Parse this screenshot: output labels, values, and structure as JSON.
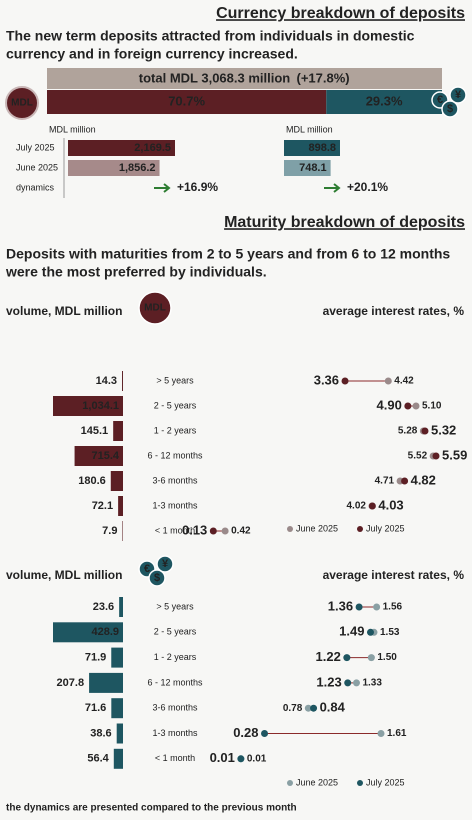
{
  "currency": {
    "title": "Currency breakdown of deposits",
    "headline": [
      "The new term deposits attracted from individuals in domestic",
      "currency and in foreign currency increased."
    ],
    "total": {
      "label": "total MDL 3,068.3 million",
      "change": "(+17.8%)"
    },
    "shares": [
      {
        "value": 70.7,
        "label": "70.7%",
        "color": "#5c1f24"
      },
      {
        "value": 29.3,
        "label": "29.3%",
        "color": "#1e5661"
      }
    ],
    "icon_mdl": "MDL",
    "icon_fx": [
      "€",
      "$",
      "¥"
    ],
    "row_labels": [
      "July 2025",
      "June 2025",
      "dynamics"
    ],
    "panels": [
      {
        "unit": "MDL million",
        "values": [
          2169.5,
          1856.2
        ],
        "value_labels": [
          "2,169.5",
          "1,856.2"
        ],
        "colors": [
          "#5c1f24",
          "#a68a8a"
        ],
        "dynamics": "+16.9%"
      },
      {
        "unit": "MDL million",
        "values": [
          898.8,
          748.1
        ],
        "value_labels": [
          "898.8",
          "748.1"
        ],
        "colors": [
          "#1e5661",
          "#7fa0a7"
        ],
        "dynamics": "+20.1%"
      }
    ]
  },
  "maturity": {
    "title": "Maturity breakdown of deposits",
    "headline": [
      "Deposits with maturities from 2 to 5 years and from 6 to 12 months",
      "were the most preferred by individuals."
    ],
    "charts": [
      {
        "volume_label": "volume, MDL million",
        "rates_label": "average interest rates, %",
        "icon": [
          "MDL"
        ],
        "categories": [
          "> 5 years",
          "2 - 5 years",
          "1 - 2 years",
          "6 - 12 months",
          "3-6 months",
          "1-3 months",
          "< 1 month"
        ],
        "volume": {
          "color": "#5c1f24",
          "values": [
            14.3,
            1034.1,
            145.1,
            715.4,
            180.6,
            72.1,
            7.9
          ],
          "value_labels": [
            "14.3",
            "1,034.1",
            "145.1",
            "715.4",
            "180.6",
            "72.1",
            "7.9"
          ]
        },
        "series": [
          {
            "name": "June 2025",
            "color": "#9a8a8a",
            "values": [
              4.42,
              5.1,
              5.28,
              5.52,
              4.71,
              4.02,
              0.42
            ],
            "value_labels": [
              "4.42",
              "5.10",
              "5.28",
              "5.52",
              "4.71",
              "4.02",
              "0.42"
            ]
          },
          {
            "name": "July 2025",
            "color": "#5c1f24",
            "values": [
              3.36,
              4.9,
              5.32,
              5.59,
              4.82,
              4.03,
              0.13
            ],
            "value_labels": [
              "3.36",
              "4.90",
              "5.32",
              "5.59",
              "4.82",
              "4.03",
              "0.13"
            ]
          }
        ]
      },
      {
        "volume_label": "volume, MDL million",
        "rates_label": "average interest rates, %",
        "icon": [
          "€",
          "$",
          "¥"
        ],
        "categories": [
          "> 5 years",
          "2 - 5 years",
          "1 - 2 years",
          "6 - 12 months",
          "3-6 months",
          "1-3 months",
          "< 1 month"
        ],
        "volume": {
          "color": "#1e5661",
          "values": [
            23.6,
            428.9,
            71.9,
            207.8,
            71.6,
            38.6,
            56.4
          ],
          "value_labels": [
            "23.6",
            "428.9",
            "71.9",
            "207.8",
            "71.6",
            "38.6",
            "56.4"
          ]
        },
        "series": [
          {
            "name": "June 2025",
            "color": "#8aa0a4",
            "values": [
              1.56,
              1.53,
              1.5,
              1.33,
              0.78,
              1.61,
              0.01
            ],
            "value_labels": [
              "1.56",
              "1.53",
              "1.50",
              "1.33",
              "0.78",
              "1.61",
              "0.01"
            ]
          },
          {
            "name": "July 2025",
            "color": "#1e5661",
            "values": [
              1.36,
              1.49,
              1.22,
              1.23,
              0.84,
              0.28,
              0.01
            ],
            "value_labels": [
              "1.36",
              "1.49",
              "1.22",
              "1.23",
              "0.84",
              "0.28",
              "0.01"
            ]
          }
        ]
      }
    ]
  },
  "footnote": "the dynamics are presented compared to the previous month"
}
